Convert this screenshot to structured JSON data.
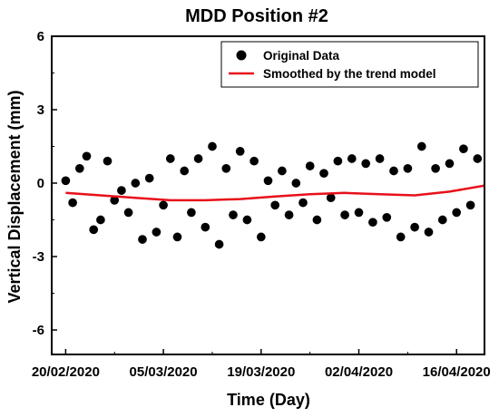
{
  "chart_data": {
    "type": "scatter",
    "title": "MDD Position #2",
    "xlabel": "Time (Day)",
    "ylabel": "Vertical Displacement (mm)",
    "xlim": [
      "2020-02-18",
      "2020-04-20"
    ],
    "ylim": [
      -7,
      6
    ],
    "x_ticks": [
      "20/02/2020",
      "05/03/2020",
      "19/03/2020",
      "02/04/2020",
      "16/04/2020"
    ],
    "y_ticks": [
      "6",
      "3",
      "0",
      "-3",
      "-6"
    ],
    "legend_position": "top-right",
    "grid": false,
    "series": [
      {
        "name": "Original Data",
        "kind": "scatter",
        "color": "#000000",
        "points": [
          [
            "2020-02-20",
            0.1
          ],
          [
            "2020-02-21",
            -0.8
          ],
          [
            "2020-02-22",
            0.6
          ],
          [
            "2020-02-23",
            1.1
          ],
          [
            "2020-02-24",
            -1.9
          ],
          [
            "2020-02-25",
            -1.5
          ],
          [
            "2020-02-26",
            0.9
          ],
          [
            "2020-02-27",
            -0.7
          ],
          [
            "2020-02-28",
            -0.3
          ],
          [
            "2020-02-29",
            -1.2
          ],
          [
            "2020-03-01",
            0.0
          ],
          [
            "2020-03-02",
            -2.3
          ],
          [
            "2020-03-03",
            0.2
          ],
          [
            "2020-03-04",
            -2.0
          ],
          [
            "2020-03-05",
            -0.9
          ],
          [
            "2020-03-06",
            1.0
          ],
          [
            "2020-03-07",
            -2.2
          ],
          [
            "2020-03-08",
            0.5
          ],
          [
            "2020-03-09",
            -1.2
          ],
          [
            "2020-03-10",
            1.0
          ],
          [
            "2020-03-11",
            -1.8
          ],
          [
            "2020-03-12",
            1.5
          ],
          [
            "2020-03-13",
            -2.5
          ],
          [
            "2020-03-14",
            0.6
          ],
          [
            "2020-03-15",
            -1.3
          ],
          [
            "2020-03-16",
            1.3
          ],
          [
            "2020-03-17",
            -1.5
          ],
          [
            "2020-03-18",
            0.9
          ],
          [
            "2020-03-19",
            -2.2
          ],
          [
            "2020-03-20",
            0.1
          ],
          [
            "2020-03-21",
            -0.9
          ],
          [
            "2020-03-22",
            0.5
          ],
          [
            "2020-03-23",
            -1.3
          ],
          [
            "2020-03-24",
            0.0
          ],
          [
            "2020-03-25",
            -0.8
          ],
          [
            "2020-03-26",
            0.7
          ],
          [
            "2020-03-27",
            -1.5
          ],
          [
            "2020-03-28",
            0.4
          ],
          [
            "2020-03-29",
            -0.6
          ],
          [
            "2020-03-30",
            0.9
          ],
          [
            "2020-03-31",
            -1.3
          ],
          [
            "2020-04-01",
            1.0
          ],
          [
            "2020-04-02",
            -1.2
          ],
          [
            "2020-04-03",
            0.8
          ],
          [
            "2020-04-04",
            -1.6
          ],
          [
            "2020-04-05",
            1.0
          ],
          [
            "2020-04-06",
            -1.4
          ],
          [
            "2020-04-07",
            0.5
          ],
          [
            "2020-04-08",
            -2.2
          ],
          [
            "2020-04-09",
            0.6
          ],
          [
            "2020-04-10",
            -1.8
          ],
          [
            "2020-04-11",
            1.5
          ],
          [
            "2020-04-12",
            -2.0
          ],
          [
            "2020-04-13",
            0.6
          ],
          [
            "2020-04-14",
            -1.5
          ],
          [
            "2020-04-15",
            0.8
          ],
          [
            "2020-04-16",
            -1.2
          ],
          [
            "2020-04-17",
            1.4
          ],
          [
            "2020-04-18",
            -0.9
          ],
          [
            "2020-04-19",
            1.0
          ]
        ]
      },
      {
        "name": "Smoothed by the trend model",
        "kind": "line",
        "color": "#e8101a",
        "points": [
          [
            "2020-02-20",
            -0.4
          ],
          [
            "2020-02-25",
            -0.5
          ],
          [
            "2020-03-01",
            -0.6
          ],
          [
            "2020-03-06",
            -0.7
          ],
          [
            "2020-03-11",
            -0.7
          ],
          [
            "2020-03-16",
            -0.65
          ],
          [
            "2020-03-21",
            -0.55
          ],
          [
            "2020-03-26",
            -0.45
          ],
          [
            "2020-03-31",
            -0.4
          ],
          [
            "2020-04-05",
            -0.45
          ],
          [
            "2020-04-10",
            -0.5
          ],
          [
            "2020-04-15",
            -0.35
          ],
          [
            "2020-04-20",
            -0.1
          ]
        ]
      }
    ]
  }
}
